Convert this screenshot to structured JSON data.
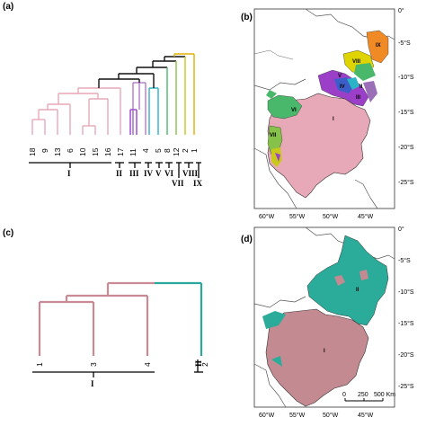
{
  "panels": {
    "a": "(a)",
    "b": "(b)",
    "c": "(c)",
    "d": "(d)"
  },
  "dendrogram_a": {
    "leaves": [
      "18",
      "9",
      "13",
      "6",
      "10",
      "15",
      "16",
      "17",
      "14",
      "11",
      "3",
      "4",
      "7",
      "5",
      "8",
      "12",
      "2",
      "1"
    ],
    "groups": [
      "I",
      "II",
      "III",
      "IV",
      "V",
      "VI",
      "VII",
      "VIII",
      "IX"
    ]
  },
  "dendrogram_c": {
    "leaves": [
      "1",
      "3",
      "4",
      "2"
    ],
    "groups": [
      "I",
      "II"
    ]
  },
  "map_b": {
    "lon_labels": [
      "60°W",
      "55°W",
      "50°W",
      "45°W"
    ],
    "lat_labels": [
      "0°",
      "-5°S",
      "-10°S",
      "-15°S",
      "-20°S",
      "-25°S"
    ],
    "regions": [
      "IX",
      "VIII",
      "VII",
      "VI",
      "V",
      "IV",
      "III",
      "II",
      "I"
    ]
  },
  "map_d": {
    "lon_labels": [
      "60°W",
      "55°W",
      "50°W",
      "45°W"
    ],
    "lat_labels": [
      "0°",
      "-5°S",
      "-10°S",
      "-15°S",
      "-20°S",
      "-25°S"
    ],
    "regions": [
      "I",
      "II"
    ],
    "scale_ticks": [
      "0",
      "250",
      "500 Km"
    ]
  },
  "colors": {
    "group1": "#e7a9b8",
    "group2": "#9a6fb8",
    "group3": "#9b3fc9",
    "group4": "#2bb3c6",
    "group5": "#4ab86a",
    "group6": "#86c24a",
    "group7": "#c8c91a",
    "group8": "#e0b000",
    "group9": "#f08a24",
    "c_pink": "#c98a95",
    "c_teal": "#2aa79b",
    "map_d_pink": "#c48a91",
    "map_d_teal": "#2bab9a"
  }
}
